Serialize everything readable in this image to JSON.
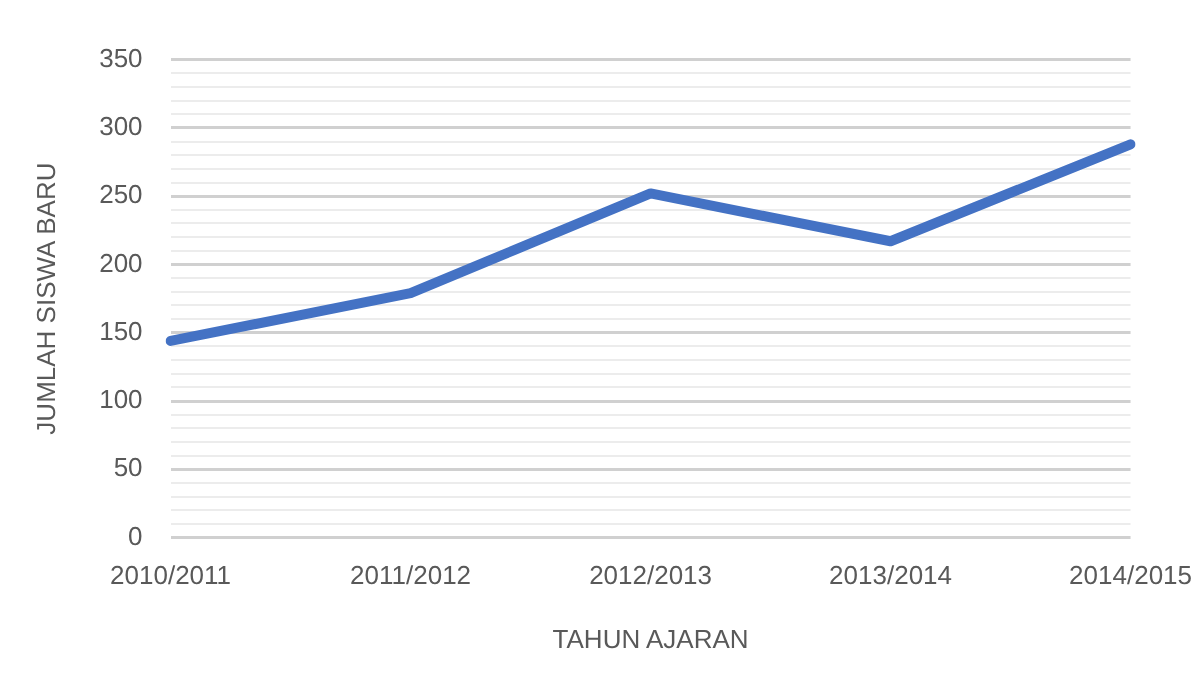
{
  "chart_data": {
    "type": "line",
    "xlabel": "TAHUN AJARAN",
    "ylabel": "JUMLAH SISWA BARU",
    "categories": [
      "2010/2011",
      "2011/2012",
      "2012/2013",
      "2013/2014",
      "2014/2015"
    ],
    "series": [
      {
        "color": "#4472c4",
        "values": [
          144,
          179,
          252,
          217,
          288
        ]
      }
    ],
    "ylim": [
      0,
      350
    ],
    "yticks": [
      0,
      {
        "value": 10,
        "label": null
      },
      {
        "value": 20,
        "label": null
      },
      {
        "value": 30,
        "label": null
      },
      {
        "value": 40,
        "label": null
      },
      50,
      {
        "value": 60,
        "label": null
      },
      {
        "value": 70,
        "label": null
      },
      {
        "value": 80,
        "label": null
      },
      {
        "value": 90,
        "label": null
      },
      100,
      {
        "value": 110,
        "label": null
      },
      {
        "value": 120,
        "label": null
      },
      {
        "value": 130,
        "label": null
      },
      {
        "value": 140,
        "label": null
      },
      150,
      {
        "value": 160,
        "label": null
      },
      {
        "value": 170,
        "label": null
      },
      {
        "value": 180,
        "label": null
      },
      {
        "value": 190,
        "label": null
      },
      200,
      {
        "value": 210,
        "label": null
      },
      {
        "value": 220,
        "label": null
      },
      {
        "value": 230,
        "label": null
      },
      {
        "value": 240,
        "label": null
      },
      250,
      {
        "value": 260,
        "label": null
      },
      {
        "value": 270,
        "label": null
      },
      {
        "value": 280,
        "label": null
      },
      {
        "value": 290,
        "label": null
      },
      300,
      {
        "value": 310,
        "label": null
      },
      {
        "value": 320,
        "label": null
      },
      {
        "value": 330,
        "label": null
      },
      {
        "value": 340,
        "label": null
      },
      350
    ],
    "grid": "y",
    "legend": false,
    "marker": "none",
    "line_style": "solid"
  }
}
